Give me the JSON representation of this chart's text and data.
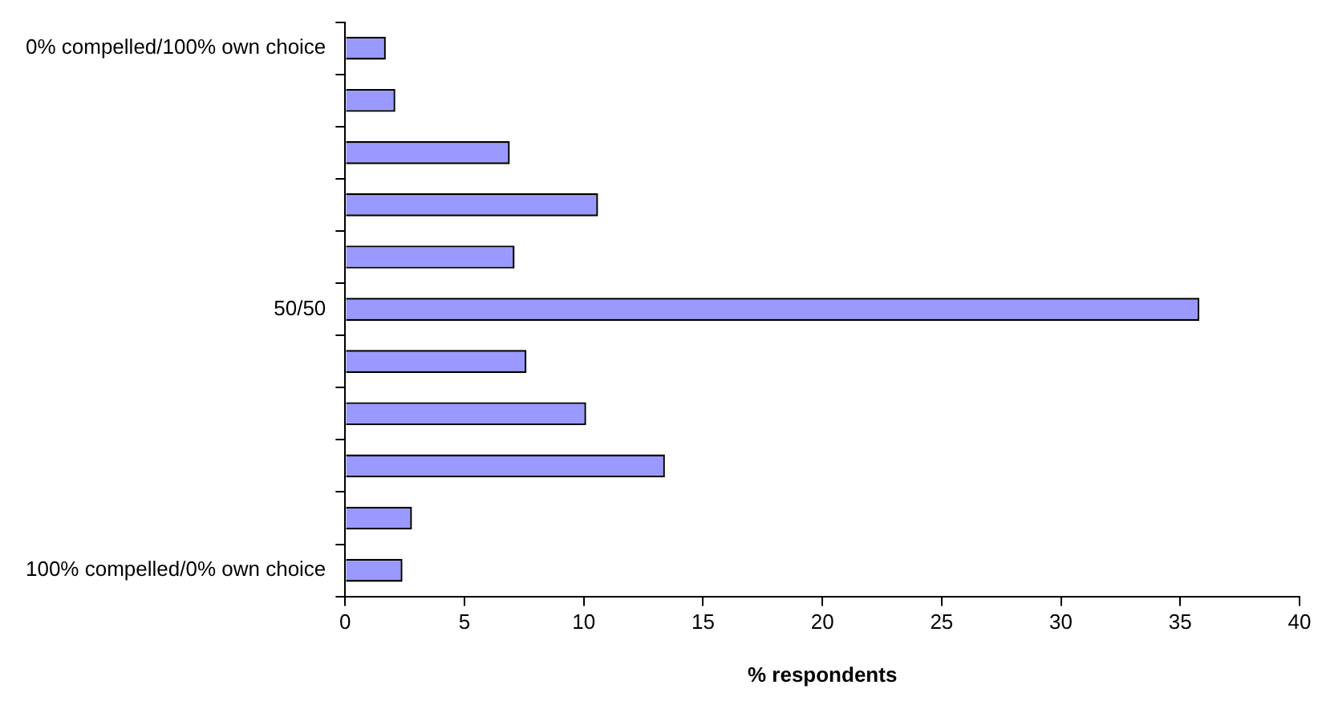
{
  "chart_data": {
    "type": "bar",
    "orientation": "horizontal",
    "xlabel": "% respondents",
    "categories": [
      "0% compelled/100% own choice",
      null,
      null,
      null,
      null,
      "50/50",
      null,
      null,
      null,
      null,
      "100% compelled/0% own choice"
    ],
    "values": [
      1.7,
      2.1,
      6.9,
      10.6,
      7.1,
      35.8,
      7.6,
      10.1,
      13.4,
      2.8,
      2.4
    ],
    "color": "#9999ff",
    "xlim": [
      0,
      40
    ],
    "xticks": [
      0,
      5,
      10,
      15,
      20,
      25,
      30,
      35,
      40
    ],
    "grid": false,
    "legend": false
  }
}
